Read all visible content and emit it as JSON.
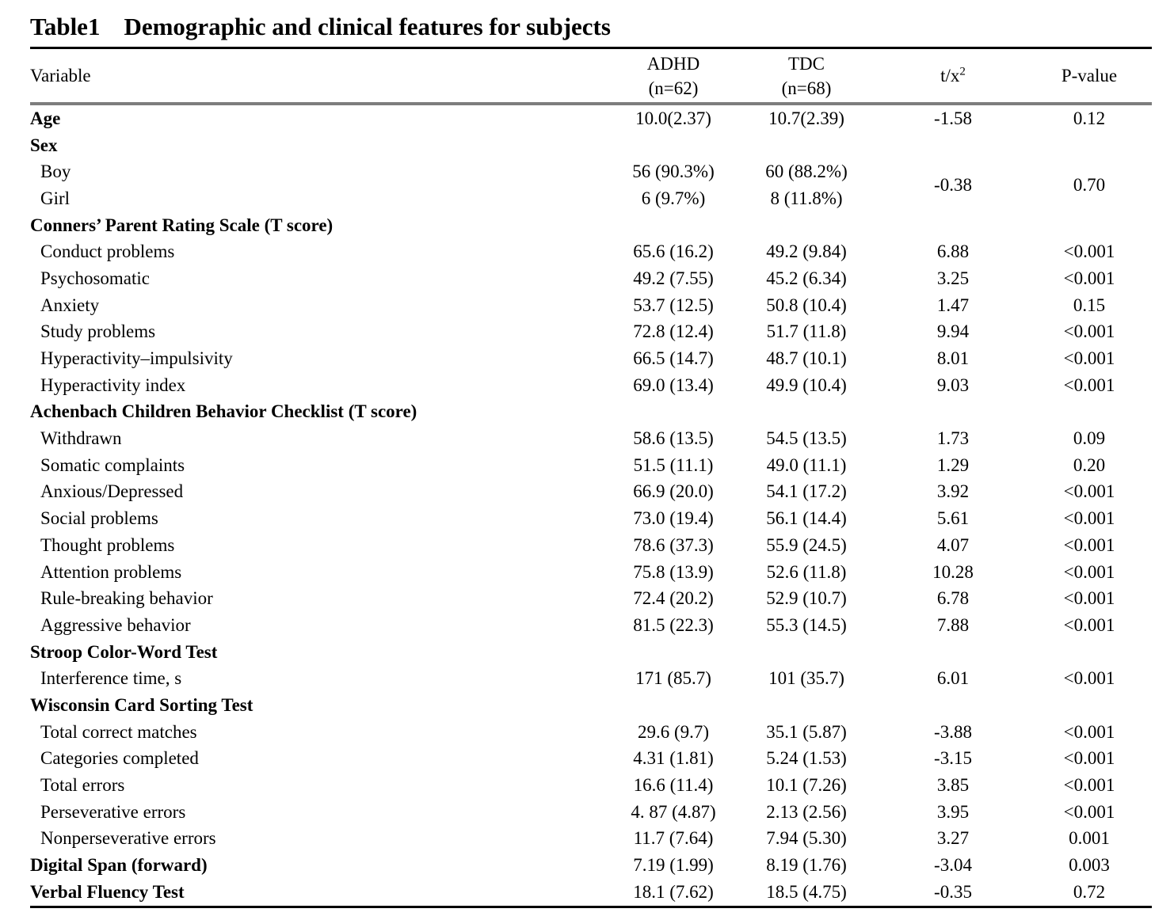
{
  "title": {
    "prefix": "Table1",
    "text": "Demographic and clinical features for subjects"
  },
  "header": {
    "variable": "Variable",
    "adhd_line1": "ADHD",
    "adhd_line2": "(n=62)",
    "tdc_line1": "TDC",
    "tdc_line2": "(n=68)",
    "stat_base": "t/x",
    "stat_sup": "2",
    "pvalue": "P-value"
  },
  "colors": {
    "text": "#000000",
    "background": "#ffffff",
    "title_rule": "#000000",
    "header_rule": "#7d7d7d",
    "bottom_rule": "#000000"
  },
  "table": {
    "rows": [
      {
        "label": "Age",
        "style": "bold",
        "adhd": "10.0(2.37)",
        "tdc": "10.7(2.39)",
        "t": "-1.58",
        "p": "0.12"
      },
      {
        "label": "Sex",
        "style": "section"
      },
      {
        "label": "Boy",
        "style": "item",
        "adhd": "56 (90.3%)",
        "tdc": "60 (88.2%)",
        "t": "-0.38",
        "p": "0.70",
        "tp_rowspan": 2
      },
      {
        "label": "Girl",
        "style": "item",
        "adhd": "6 (9.7%)",
        "tdc": "8 (11.8%)",
        "skip_tp": true
      },
      {
        "label": "Conners’ Parent Rating Scale (T score)",
        "style": "section"
      },
      {
        "label": "Conduct problems",
        "style": "item",
        "adhd": "65.6 (16.2)",
        "tdc": "49.2 (9.84)",
        "t": "6.88",
        "p": "<0.001"
      },
      {
        "label": "Psychosomatic",
        "style": "item",
        "adhd": "49.2 (7.55)",
        "tdc": "45.2 (6.34)",
        "t": "3.25",
        "p": "<0.001"
      },
      {
        "label": "Anxiety",
        "style": "item",
        "adhd": "53.7 (12.5)",
        "tdc": "50.8 (10.4)",
        "t": "1.47",
        "p": "0.15"
      },
      {
        "label": "Study problems",
        "style": "item",
        "adhd": "72.8 (12.4)",
        "tdc": "51.7 (11.8)",
        "t": "9.94",
        "p": "<0.001"
      },
      {
        "label": "Hyperactivity–impulsivity",
        "style": "item",
        "adhd": "66.5 (14.7)",
        "tdc": "48.7 (10.1)",
        "t": "8.01",
        "p": "<0.001"
      },
      {
        "label": "Hyperactivity index",
        "style": "item",
        "adhd": "69.0 (13.4)",
        "tdc": "49.9 (10.4)",
        "t": "9.03",
        "p": "<0.001"
      },
      {
        "label": "Achenbach Children Behavior Checklist (T score)",
        "style": "section"
      },
      {
        "label": "Withdrawn",
        "style": "item",
        "adhd": "58.6 (13.5)",
        "tdc": "54.5 (13.5)",
        "t": "1.73",
        "p": "0.09"
      },
      {
        "label": "Somatic complaints",
        "style": "item",
        "adhd": "51.5 (11.1)",
        "tdc": "49.0 (11.1)",
        "t": "1.29",
        "p": "0.20"
      },
      {
        "label": "Anxious/Depressed",
        "style": "item",
        "adhd": "66.9 (20.0)",
        "tdc": "54.1 (17.2)",
        "t": "3.92",
        "p": "<0.001"
      },
      {
        "label": "Social problems",
        "style": "item",
        "adhd": "73.0 (19.4)",
        "tdc": "56.1 (14.4)",
        "t": "5.61",
        "p": "<0.001"
      },
      {
        "label": "Thought problems",
        "style": "item",
        "adhd": "78.6 (37.3)",
        "tdc": "55.9 (24.5)",
        "t": "4.07",
        "p": "<0.001"
      },
      {
        "label": "Attention problems",
        "style": "item",
        "adhd": "75.8 (13.9)",
        "tdc": "52.6 (11.8)",
        "t": "10.28",
        "p": "<0.001"
      },
      {
        "label": "Rule-breaking behavior",
        "style": "item",
        "adhd": "72.4 (20.2)",
        "tdc": "52.9 (10.7)",
        "t": "6.78",
        "p": "<0.001"
      },
      {
        "label": "Aggressive behavior",
        "style": "item",
        "adhd": "81.5 (22.3)",
        "tdc": "55.3 (14.5)",
        "t": "7.88",
        "p": "<0.001"
      },
      {
        "label": "Stroop Color-Word Test",
        "style": "section"
      },
      {
        "label": "Interference time, s",
        "style": "item",
        "adhd": "171 (85.7)",
        "tdc": "101 (35.7)",
        "t": "6.01",
        "p": "<0.001"
      },
      {
        "label": "Wisconsin Card Sorting Test",
        "style": "section"
      },
      {
        "label": "Total correct matches",
        "style": "item",
        "adhd": "29.6 (9.7)",
        "tdc": "35.1 (5.87)",
        "t": "-3.88",
        "p": "<0.001"
      },
      {
        "label": "Categories completed",
        "style": "item",
        "adhd": "4.31 (1.81)",
        "tdc": "5.24 (1.53)",
        "t": "-3.15",
        "p": "<0.001"
      },
      {
        "label": "Total errors",
        "style": "item",
        "adhd": "16.6 (11.4)",
        "tdc": "10.1 (7.26)",
        "t": "3.85",
        "p": "<0.001"
      },
      {
        "label": "Perseverative errors",
        "style": "item",
        "adhd": "4. 87 (4.87)",
        "tdc": "2.13 (2.56)",
        "t": "3.95",
        "p": "<0.001"
      },
      {
        "label": "Nonperseverative errors",
        "style": "item",
        "adhd": "11.7 (7.64)",
        "tdc": "7.94 (5.30)",
        "t": "3.27",
        "p": "0.001"
      },
      {
        "label": "Digital Span (forward)",
        "style": "bold",
        "adhd": "7.19 (1.99)",
        "tdc": "8.19 (1.76)",
        "t": "-3.04",
        "p": "0.003"
      },
      {
        "label": "Verbal Fluency Test",
        "style": "bold",
        "adhd": "18.1 (7.62)",
        "tdc": "18.5 (4.75)",
        "t": "-0.35",
        "p": "0.72"
      }
    ]
  }
}
